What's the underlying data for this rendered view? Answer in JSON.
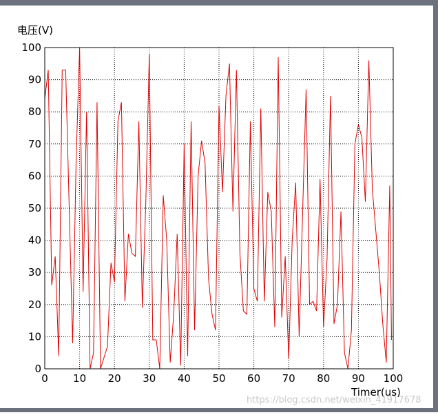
{
  "chart_data": {
    "type": "line",
    "ylabel": "电压(V)",
    "xlabel": "Timer(us)",
    "annotation": "https://blog.csdn.net/weixin_41917678",
    "color": "#e00000",
    "x": [
      0,
      1,
      2,
      3,
      4,
      5,
      6,
      6.5,
      8,
      9,
      10,
      11,
      12,
      13,
      14,
      15,
      16,
      18,
      19,
      20,
      21,
      22,
      23,
      24,
      25,
      26,
      27,
      28,
      29,
      30,
      31,
      32,
      33,
      34,
      35,
      36,
      37,
      38,
      39,
      40,
      41,
      42,
      43,
      44,
      45,
      46,
      47,
      48,
      49,
      50,
      51,
      52,
      53,
      54,
      55,
      56,
      57,
      58,
      59,
      60,
      61,
      62,
      63,
      64,
      65,
      66,
      67,
      68,
      69,
      70,
      71,
      72,
      73,
      74,
      75,
      76,
      77,
      78,
      79,
      80,
      81,
      82,
      83,
      84,
      85,
      86,
      87,
      88,
      89,
      90,
      91,
      92,
      93,
      94,
      96,
      97,
      98,
      99,
      99.5
    ],
    "values": [
      84,
      93,
      26,
      35,
      4,
      93,
      93,
      72,
      8,
      65,
      100,
      24,
      80,
      0,
      5,
      83,
      0,
      7,
      33,
      27,
      77,
      83,
      21,
      42,
      36,
      35,
      77,
      19,
      52,
      98,
      9,
      9,
      0,
      54,
      40,
      2,
      17,
      42,
      1,
      70,
      4,
      77,
      12,
      60,
      71,
      64,
      28,
      17,
      12,
      82,
      55,
      85,
      95,
      49,
      93,
      36,
      18,
      17,
      77,
      25,
      21,
      81,
      21,
      55,
      49,
      13,
      97,
      16,
      35,
      3,
      40,
      58,
      10,
      49,
      87,
      20,
      21,
      18,
      59,
      13,
      34,
      85,
      14,
      20,
      49,
      5,
      0,
      12,
      70,
      76,
      72,
      52,
      96,
      56,
      30,
      14,
      2,
      57,
      9
    ],
    "xlim": [
      0,
      100
    ],
    "ylim": [
      0,
      100
    ],
    "xticks": [
      0,
      10,
      20,
      30,
      40,
      50,
      60,
      70,
      80,
      90,
      100
    ],
    "yticks": [
      0,
      10,
      20,
      30,
      40,
      50,
      60,
      70,
      80,
      90,
      100
    ],
    "grid": true
  }
}
